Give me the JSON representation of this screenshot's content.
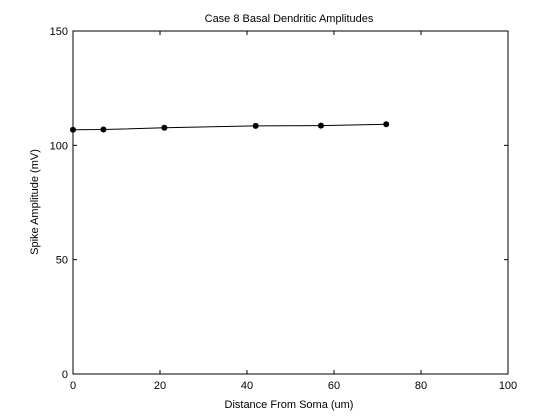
{
  "chart_data": {
    "type": "line",
    "title": "Case 8 Basal Dendritic Amplitudes",
    "xlabel": "Distance From Soma (um)",
    "ylabel": "Spike Amplitude (mV)",
    "xlim": [
      0,
      100
    ],
    "ylim": [
      0,
      150
    ],
    "xticks": [
      0,
      20,
      40,
      60,
      80,
      100
    ],
    "yticks": [
      0,
      50,
      100,
      150
    ],
    "grid": false,
    "legend": "none",
    "series": [
      {
        "x": [
          0,
          7,
          21,
          42,
          57,
          72
        ],
        "y": [
          106.8,
          106.9,
          107.7,
          108.5,
          108.6,
          109.2
        ],
        "color": "#000000",
        "marker": "circle"
      }
    ]
  }
}
